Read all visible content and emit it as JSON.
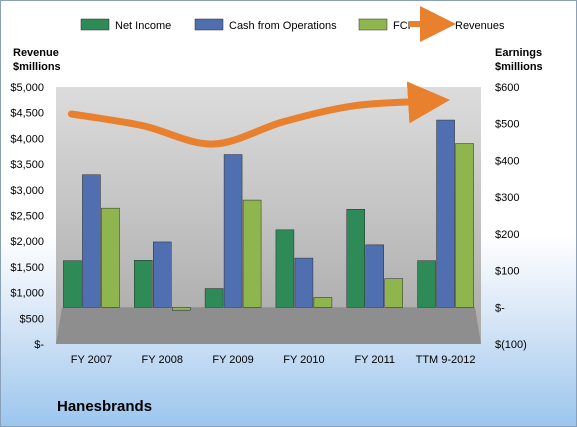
{
  "company": "Hanesbrands",
  "chart_data": {
    "type": "bar",
    "categories": [
      "FY 2007",
      "FY 2008",
      "FY 2009",
      "FY 2010",
      "FY 2011",
      "TTM 9-2012"
    ],
    "y_left": {
      "label_lines": [
        "Revenue",
        "$millions"
      ],
      "ticks": [
        0,
        500,
        1000,
        1500,
        2000,
        2500,
        3000,
        3500,
        4000,
        4500,
        5000
      ],
      "tick_labels": [
        "$-",
        "$500",
        "$1,000",
        "$1,500",
        "$2,000",
        "$2,500",
        "$3,000",
        "$3,500",
        "$4,000",
        "$4,500",
        "$5,000"
      ],
      "ylim": [
        0,
        5000
      ]
    },
    "y_right": {
      "label_lines": [
        "Earnings",
        "$millions"
      ],
      "ticks": [
        -100,
        0,
        100,
        200,
        300,
        400,
        500,
        600
      ],
      "tick_labels": [
        "$(100)",
        "$-",
        "$100",
        "$200",
        "$300",
        "$400",
        "$500",
        "$600"
      ],
      "ylim": [
        -100,
        600
      ]
    },
    "series": [
      {
        "name": "Net Income",
        "type": "bar",
        "axis": "right",
        "color": "#2e8b57",
        "values": [
          127,
          128,
          51,
          211,
          267,
          127
        ]
      },
      {
        "name": "Cash from Operations",
        "type": "bar",
        "axis": "right",
        "color": "#4f6fb0",
        "values": [
          361,
          178,
          416,
          134,
          170,
          510
        ]
      },
      {
        "name": "FCF",
        "type": "bar",
        "axis": "right",
        "color": "#8fb54f",
        "values": [
          270,
          -8,
          292,
          27,
          78,
          446
        ]
      },
      {
        "name": "Revenues",
        "type": "line",
        "axis": "left",
        "color": "#e8802e",
        "values": [
          4475,
          4250,
          3890,
          4326,
          4637,
          4720
        ]
      }
    ],
    "legend_position": "top",
    "grid": false,
    "plot_background": "#c8c8c8"
  }
}
